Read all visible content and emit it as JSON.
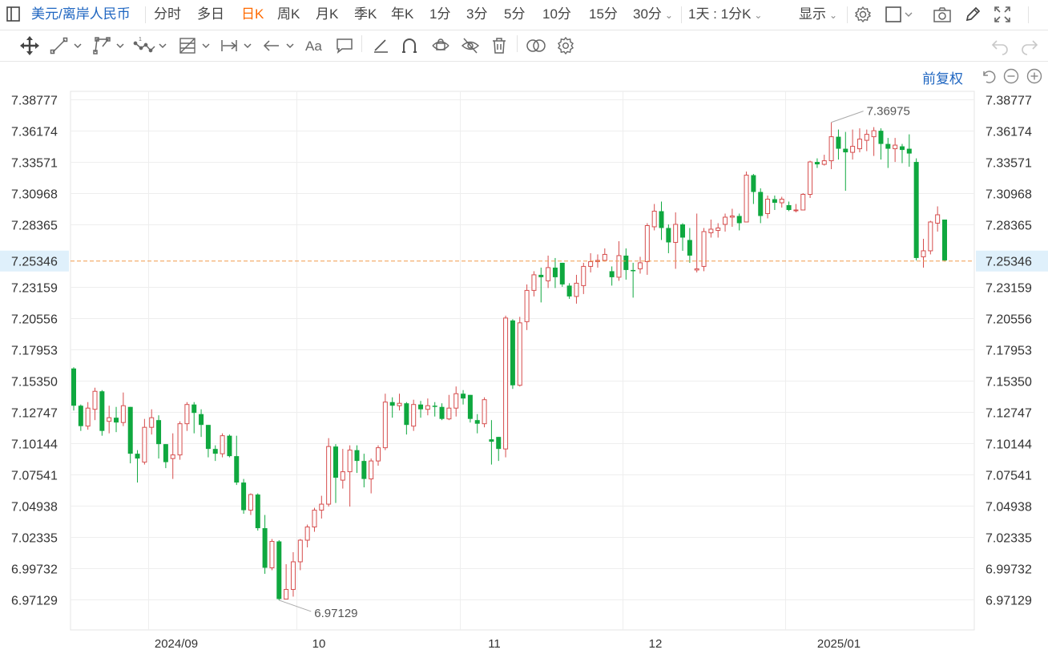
{
  "topbar": {
    "symbol": "美元/离岸人民币",
    "periods": [
      "分时",
      "多日",
      "日K",
      "周K",
      "月K",
      "季K",
      "年K",
      "1分",
      "3分",
      "5分",
      "10分",
      "15分",
      "30分"
    ],
    "active_period": "日K",
    "interval_label": "1天 : 1分K",
    "display_label": "显示"
  },
  "fuquan_label": "前复权",
  "icons": {
    "top_right": [
      "settings-icon",
      "square-dropdown-icon",
      "camera-icon",
      "pencil-icon",
      "fullscreen-icon"
    ],
    "toolbar": [
      "move-icon",
      "line-icon",
      "polyline-icon",
      "wave-icon",
      "fibonacci-icon",
      "range-icon",
      "arrow-icon",
      "text-icon",
      "comment-icon",
      "draw-line-icon",
      "magnet-icon",
      "lock-icon",
      "hide-icon",
      "delete-icon",
      "compare-icon",
      "gear-icon",
      "undo-icon",
      "redo-icon"
    ],
    "zoom": [
      "reset-icon",
      "zoom-out-icon",
      "zoom-in-icon"
    ]
  },
  "colors": {
    "up": "#d64d4d",
    "down": "#0fa83f",
    "grid": "#eeeeee",
    "last_line": "#f09a4a",
    "last_label_bg": "#dff0fb",
    "accent": "#1f66c1",
    "active": "#ff6a00"
  },
  "chart_data": {
    "type": "candlestick",
    "title": "",
    "ylim": [
      6.96,
      7.4
    ],
    "y_ticks": [
      "7.38777",
      "7.36174",
      "7.33571",
      "7.30968",
      "7.28365",
      "7.25346",
      "7.23159",
      "7.20556",
      "7.17953",
      "7.15350",
      "7.12747",
      "7.10144",
      "7.07541",
      "7.04938",
      "7.02335",
      "6.99732",
      "6.97129"
    ],
    "x_ticks": [
      "2024/09",
      "10",
      "11",
      "12",
      "2025/01"
    ],
    "last_value": "7.25346",
    "high_label": "7.36975",
    "low_label": "6.97129",
    "candles": [
      [
        7.164,
        7.133,
        7.165,
        7.129
      ],
      [
        7.133,
        7.116,
        7.134,
        7.112
      ],
      [
        7.116,
        7.131,
        7.136,
        7.113
      ],
      [
        7.13,
        7.145,
        7.148,
        7.121
      ],
      [
        7.145,
        7.112,
        7.146,
        7.108
      ],
      [
        7.12,
        7.123,
        7.133,
        7.11
      ],
      [
        7.123,
        7.119,
        7.132,
        7.111
      ],
      [
        7.119,
        7.133,
        7.144,
        7.116
      ],
      [
        7.132,
        7.093,
        7.132,
        7.085
      ],
      [
        7.093,
        7.089,
        7.096,
        7.069
      ],
      [
        7.086,
        7.115,
        7.122,
        7.084
      ],
      [
        7.115,
        7.123,
        7.13,
        7.109
      ],
      [
        7.121,
        7.101,
        7.125,
        7.089
      ],
      [
        7.101,
        7.086,
        7.101,
        7.081
      ],
      [
        7.089,
        7.092,
        7.11,
        7.072
      ],
      [
        7.092,
        7.118,
        7.12,
        7.088
      ],
      [
        7.118,
        7.134,
        7.136,
        7.112
      ],
      [
        7.134,
        7.127,
        7.136,
        7.11
      ],
      [
        7.126,
        7.117,
        7.13,
        7.107
      ],
      [
        7.117,
        7.097,
        7.117,
        7.09
      ],
      [
        7.097,
        7.093,
        7.1,
        7.087
      ],
      [
        7.093,
        7.108,
        7.11,
        7.09
      ],
      [
        7.108,
        7.091,
        7.109,
        7.09
      ],
      [
        7.091,
        7.069,
        7.108,
        7.067
      ],
      [
        7.069,
        7.046,
        7.072,
        7.043
      ],
      [
        7.046,
        7.059,
        7.06,
        7.042
      ],
      [
        7.059,
        7.031,
        7.06,
        7.029
      ],
      [
        7.031,
        6.998,
        7.042,
        6.993
      ],
      [
        6.998,
        7.02,
        7.022,
        6.996
      ],
      [
        7.02,
        6.972,
        7.021,
        6.971
      ],
      [
        6.972,
        6.98,
        7.001,
        6.973
      ],
      [
        6.98,
        7.003,
        7.011,
        6.974
      ],
      [
        7.003,
        7.021,
        7.022,
        6.996
      ],
      [
        7.021,
        7.032,
        7.034,
        7.015
      ],
      [
        7.032,
        7.046,
        7.048,
        7.028
      ],
      [
        7.046,
        7.051,
        7.058,
        7.039
      ],
      [
        7.051,
        7.099,
        7.106,
        7.049
      ],
      [
        7.099,
        7.073,
        7.101,
        7.052
      ],
      [
        7.071,
        7.078,
        7.097,
        7.064
      ],
      [
        7.078,
        7.096,
        7.1,
        7.049
      ],
      [
        7.096,
        7.087,
        7.1,
        7.077
      ],
      [
        7.087,
        7.072,
        7.093,
        7.065
      ],
      [
        7.072,
        7.087,
        7.089,
        7.06
      ],
      [
        7.087,
        7.098,
        7.1,
        7.083
      ],
      [
        7.098,
        7.136,
        7.143,
        7.096
      ],
      [
        7.136,
        7.133,
        7.14,
        7.123
      ],
      [
        7.133,
        7.135,
        7.143,
        7.129
      ],
      [
        7.135,
        7.117,
        7.136,
        7.109
      ],
      [
        7.116,
        7.134,
        7.138,
        7.112
      ],
      [
        7.134,
        7.13,
        7.137,
        7.123
      ],
      [
        7.13,
        7.133,
        7.139,
        7.125
      ],
      [
        7.133,
        7.132,
        7.136,
        7.124
      ],
      [
        7.132,
        7.122,
        7.135,
        7.121
      ],
      [
        7.122,
        7.131,
        7.142,
        7.121
      ],
      [
        7.131,
        7.143,
        7.149,
        7.124
      ],
      [
        7.143,
        7.139,
        7.146,
        7.134
      ],
      [
        7.142,
        7.122,
        7.142,
        7.119
      ],
      [
        7.121,
        7.118,
        7.126,
        7.11
      ],
      [
        7.118,
        7.138,
        7.14,
        7.115
      ],
      [
        7.105,
        7.103,
        7.121,
        7.084
      ],
      [
        7.107,
        7.097,
        7.107,
        7.087
      ],
      [
        7.097,
        7.206,
        7.208,
        7.09
      ],
      [
        7.204,
        7.15,
        7.205,
        7.147
      ],
      [
        7.15,
        7.202,
        7.207,
        7.149
      ],
      [
        7.203,
        7.229,
        7.234,
        7.196
      ],
      [
        7.229,
        7.242,
        7.245,
        7.224
      ],
      [
        7.242,
        7.24,
        7.248,
        7.219
      ],
      [
        7.237,
        7.248,
        7.258,
        7.231
      ],
      [
        7.248,
        7.24,
        7.256,
        7.231
      ],
      [
        7.252,
        7.234,
        7.252,
        7.232
      ],
      [
        7.233,
        7.224,
        7.235,
        7.222
      ],
      [
        7.224,
        7.235,
        7.242,
        7.218
      ],
      [
        7.233,
        7.249,
        7.252,
        7.226
      ],
      [
        7.249,
        7.253,
        7.26,
        7.244
      ],
      [
        7.253,
        7.254,
        7.259,
        7.248
      ],
      [
        7.254,
        7.259,
        7.264,
        7.253
      ],
      [
        7.245,
        7.24,
        7.249,
        7.233
      ],
      [
        7.24,
        7.258,
        7.27,
        7.237
      ],
      [
        7.258,
        7.246,
        7.264,
        7.238
      ],
      [
        7.246,
        7.245,
        7.252,
        7.223
      ],
      [
        7.247,
        7.252,
        7.257,
        7.243
      ],
      [
        7.253,
        7.283,
        7.285,
        7.242
      ],
      [
        7.282,
        7.295,
        7.301,
        7.279
      ],
      [
        7.295,
        7.281,
        7.303,
        7.271
      ],
      [
        7.281,
        7.269,
        7.284,
        7.26
      ],
      [
        7.269,
        7.284,
        7.294,
        7.247
      ],
      [
        7.284,
        7.273,
        7.285,
        7.262
      ],
      [
        7.271,
        7.258,
        7.281,
        7.252
      ],
      [
        7.246,
        7.247,
        7.293,
        7.244
      ],
      [
        7.249,
        7.278,
        7.281,
        7.245
      ],
      [
        7.277,
        7.28,
        7.288,
        7.273
      ],
      [
        7.279,
        7.281,
        7.285,
        7.273
      ],
      [
        7.284,
        7.29,
        7.293,
        7.278
      ],
      [
        7.29,
        7.291,
        7.297,
        7.282
      ],
      [
        7.291,
        7.285,
        7.293,
        7.279
      ],
      [
        7.286,
        7.325,
        7.328,
        7.286
      ],
      [
        7.325,
        7.311,
        7.326,
        7.301
      ],
      [
        7.311,
        7.291,
        7.314,
        7.285
      ],
      [
        7.293,
        7.305,
        7.308,
        7.289
      ],
      [
        7.305,
        7.302,
        7.308,
        7.296
      ],
      [
        7.302,
        7.305,
        7.307,
        7.298
      ],
      [
        7.3,
        7.296,
        7.303,
        7.295
      ],
      [
        7.296,
        7.296,
        7.301,
        7.294
      ],
      [
        7.296,
        7.309,
        7.31,
        7.296
      ],
      [
        7.309,
        7.336,
        7.337,
        7.306
      ],
      [
        7.336,
        7.334,
        7.339,
        7.331
      ],
      [
        7.334,
        7.337,
        7.342,
        7.333
      ],
      [
        7.337,
        7.357,
        7.369,
        7.33
      ],
      [
        7.357,
        7.347,
        7.363,
        7.338
      ],
      [
        7.347,
        7.344,
        7.361,
        7.312
      ],
      [
        7.344,
        7.349,
        7.363,
        7.338
      ],
      [
        7.347,
        7.355,
        7.364,
        7.344
      ],
      [
        7.354,
        7.359,
        7.363,
        7.345
      ],
      [
        7.357,
        7.362,
        7.365,
        7.341
      ],
      [
        7.362,
        7.351,
        7.364,
        7.338
      ],
      [
        7.351,
        7.347,
        7.356,
        7.331
      ],
      [
        7.347,
        7.35,
        7.356,
        7.336
      ],
      [
        7.349,
        7.346,
        7.351,
        7.335
      ],
      [
        7.347,
        7.343,
        7.359,
        7.332
      ],
      [
        7.336,
        7.256,
        7.339,
        7.254
      ],
      [
        7.257,
        7.262,
        7.272,
        7.248
      ],
      [
        7.262,
        7.286,
        7.287,
        7.259
      ],
      [
        7.285,
        7.292,
        7.299,
        7.278
      ],
      [
        7.288,
        7.254,
        7.288,
        7.253
      ]
    ]
  }
}
